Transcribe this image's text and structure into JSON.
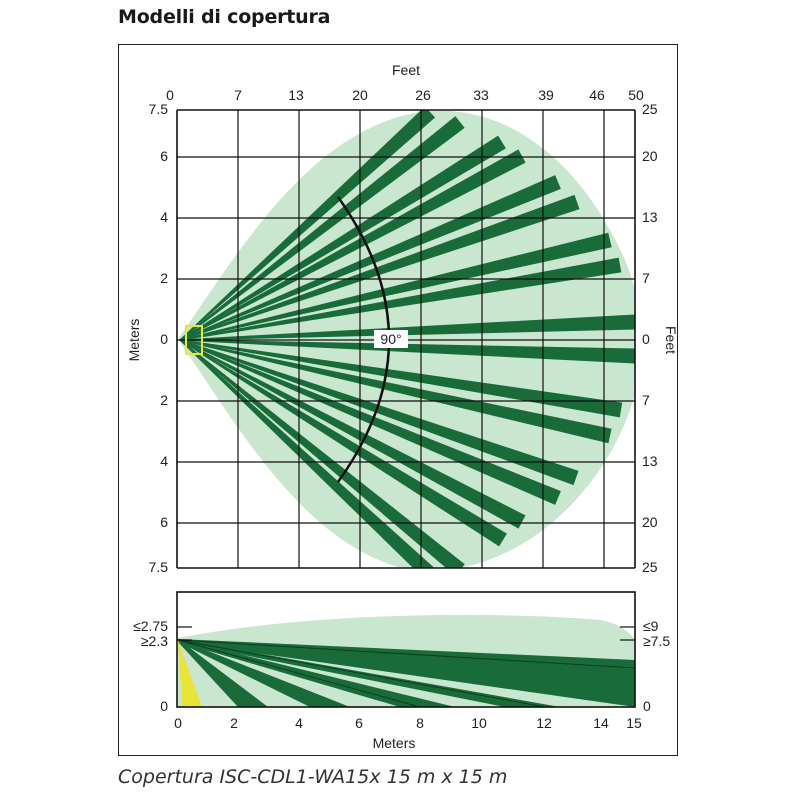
{
  "title": "Modelli di copertura",
  "caption": "Copertura ISC-CDL1-WA15x 15 m x 15 m",
  "colors": {
    "zone_fill": "#c9e6cf",
    "beam": "#1a6b3a",
    "grid": "#111111",
    "sensor": "#e8e43a",
    "angle_arc": "#111111"
  },
  "top_view": {
    "x_axis_top_label": "Feet",
    "x_ticks_feet": [
      "0",
      "7",
      "13",
      "20",
      "26",
      "33",
      "39",
      "46",
      "50"
    ],
    "y_axis_left_label": "Meters",
    "y_axis_right_label": "Feet",
    "y_ticks_left": [
      "7.5",
      "6",
      "4",
      "2",
      "0",
      "2",
      "4",
      "6",
      "7.5"
    ],
    "y_ticks_right": [
      "25",
      "20",
      "13",
      "7",
      "0",
      "7",
      "13",
      "20",
      "25"
    ],
    "angle_label": "90°"
  },
  "side_view": {
    "left_ticks": [
      "≤2.75",
      "≥2.3",
      "0"
    ],
    "right_ticks": [
      "≤9",
      "≥7.5",
      "0"
    ],
    "x_ticks": [
      "0",
      "2",
      "4",
      "6",
      "8",
      "10",
      "12",
      "14",
      "15"
    ],
    "x_axis_label": "Meters"
  }
}
